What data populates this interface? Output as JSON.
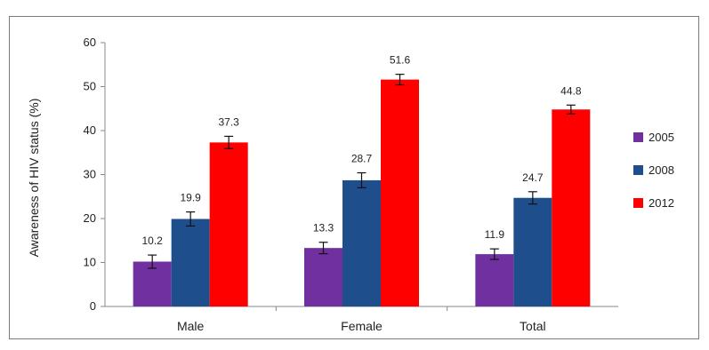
{
  "chart_data": {
    "type": "bar",
    "ylabel": "Awareness of HIV status (%)",
    "xlabel": "",
    "ylim": [
      0,
      60
    ],
    "yticks": [
      0,
      10,
      20,
      30,
      40,
      50,
      60
    ],
    "categories": [
      "Male",
      "Female",
      "Total"
    ],
    "series": [
      {
        "name": "2005",
        "color": "#7030a0",
        "values": [
          10.2,
          13.3,
          11.9
        ],
        "labels": [
          "10.2",
          "13.3",
          "11.9"
        ],
        "error": [
          1.5,
          1.3,
          1.2
        ]
      },
      {
        "name": "2008",
        "color": "#1f4e8c",
        "values": [
          19.9,
          28.7,
          24.7
        ],
        "labels": [
          "19.9",
          "28.7",
          "24.7"
        ],
        "error": [
          1.6,
          1.7,
          1.4
        ]
      },
      {
        "name": "2012",
        "color": "#ff0000",
        "values": [
          37.3,
          51.6,
          44.8
        ],
        "labels": [
          "37.3",
          "51.6",
          "44.8"
        ],
        "error": [
          1.4,
          1.2,
          1.0
        ]
      }
    ],
    "grid": false,
    "legend_position": "right"
  }
}
